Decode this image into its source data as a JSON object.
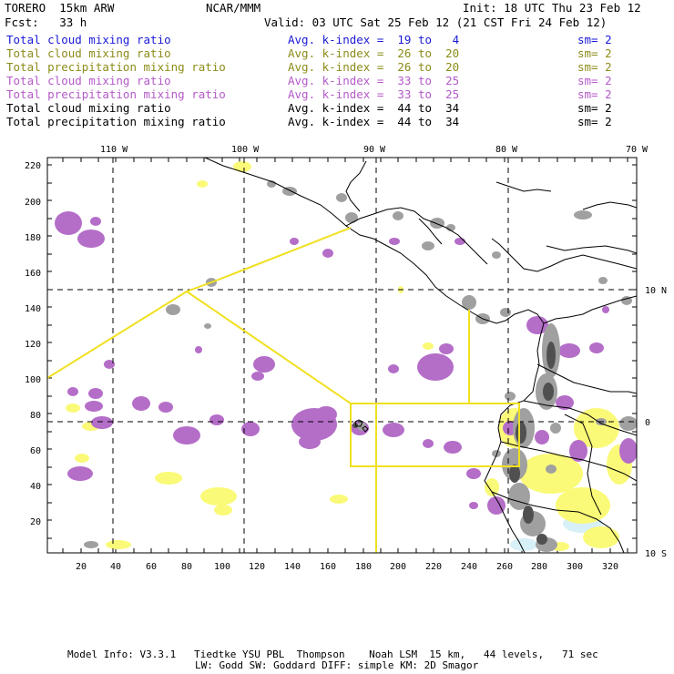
{
  "header": {
    "model": "TORERO  15km ARW",
    "org": "NCAR/MMM",
    "init": "Init: 18 UTC Thu 23 Feb 12",
    "fcst": "Fcst:   33 h",
    "valid": "Valid: 03 UTC Sat 25 Feb 12 (21 CST Fri 24 Feb 12)"
  },
  "legend": [
    {
      "field": "Total cloud mixing ratio",
      "kindex": "Avg. k-index =  19 to   4",
      "sm": "sm= 2",
      "color": "#1a1ad6"
    },
    {
      "field": "Total cloud mixing ratio",
      "kindex": "Avg. k-index =  26 to  20",
      "sm": "sm= 2",
      "color": "#8c8c1a"
    },
    {
      "field": "Total precipitation mixing ratio",
      "kindex": "Avg. k-index =  26 to  20",
      "sm": "sm= 2",
      "color": "#8c8c1a"
    },
    {
      "field": "Total cloud mixing ratio",
      "kindex": "Avg. k-index =  33 to  25",
      "sm": "sm= 2",
      "color": "#b45ac8"
    },
    {
      "field": "Total precipitation mixing ratio",
      "kindex": "Avg. k-index =  33 to  25",
      "sm": "sm= 2",
      "color": "#b45ac8"
    },
    {
      "field": "Total cloud mixing ratio",
      "kindex": "Avg. k-index =  44 to  34",
      "sm": "sm= 2",
      "color": "#000000"
    },
    {
      "field": "Total precipitation mixing ratio",
      "kindex": "Avg. k-index =  44 to  34",
      "sm": "sm= 2",
      "color": "#000000"
    }
  ],
  "map": {
    "top_lon_labels": [
      "110 W",
      "100 W",
      "90 W",
      "80 W",
      "70 W"
    ],
    "right_lat_labels": [
      "10 N",
      "0",
      "10 S"
    ],
    "left_grid_labels": [
      "220",
      "200",
      "180",
      "160",
      "140",
      "120",
      "100",
      "80",
      "60",
      "40",
      "20"
    ],
    "bottom_grid_labels": [
      "20",
      "40",
      "60",
      "80",
      "100",
      "120",
      "140",
      "160",
      "180",
      "200",
      "220",
      "240",
      "260",
      "280",
      "300",
      "320"
    ],
    "colors": {
      "land_line": "#000000",
      "gray": "#a0a0a0",
      "dark": "#505050",
      "purple": "#b46ec8",
      "yellow": "#fafa78",
      "light_blue": "#d8f0f8",
      "domain": "#f0e020"
    }
  },
  "footer": {
    "line1": "Model Info: V3.3.1   Tiedtke YSU PBL  Thompson    Noah LSM  15 km,   44 levels,   71 sec",
    "line2": "LW: Godd SW: Goddard DIFF: simple KM: 2D Smagor"
  }
}
